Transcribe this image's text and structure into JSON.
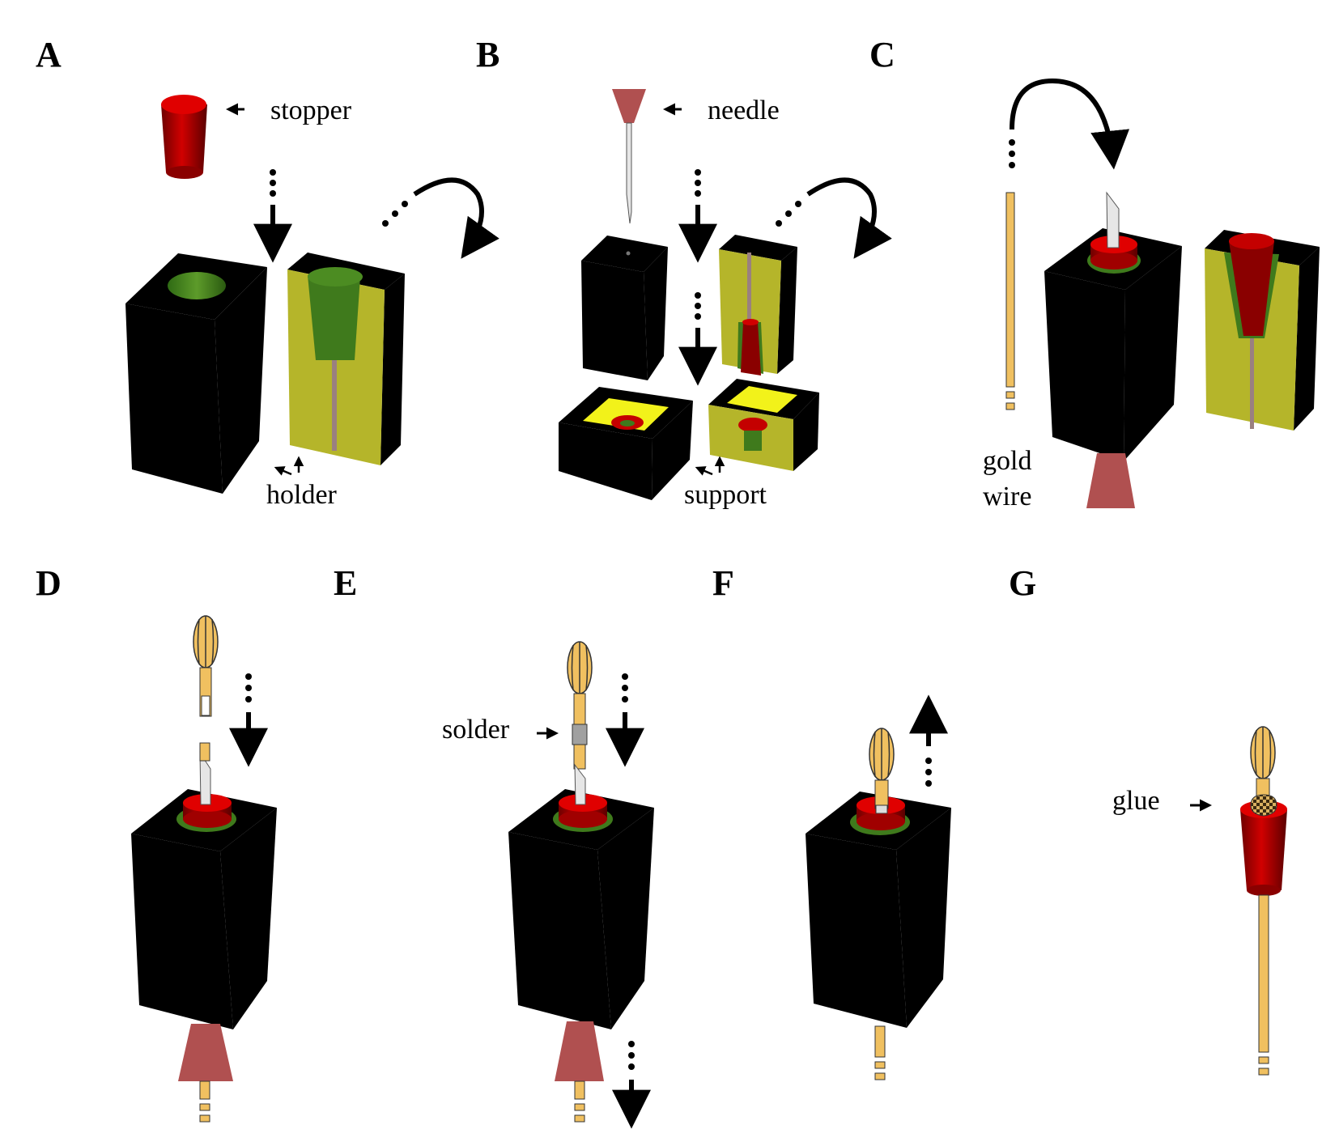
{
  "figure": {
    "panels": [
      {
        "letter": "A",
        "labels": {
          "stopper": "stopper",
          "holder": "holder"
        }
      },
      {
        "letter": "B",
        "labels": {
          "needle": "needle",
          "support": "support"
        }
      },
      {
        "letter": "C",
        "labels": {
          "gold": "gold",
          "wire": "wire"
        }
      },
      {
        "letter": "D",
        "labels": {}
      },
      {
        "letter": "E",
        "labels": {
          "solder": "solder"
        }
      },
      {
        "letter": "F",
        "labels": {}
      },
      {
        "letter": "G",
        "labels": {
          "glue": "glue"
        }
      }
    ]
  },
  "colors": {
    "block": "#000000",
    "stopper_red": "#c40000",
    "stopper_dark": "#7a0000",
    "holder_olive": "#b5b52a",
    "holder_hole_green": "#3f7a1c",
    "support_yellow": "#f2f21a",
    "needle_hub": "#b05050",
    "needle_shaft": "#e6e6e6",
    "gold": "#f0c060",
    "solder_gray": "#a0a0a0",
    "glue_pattern": "#8a6a2a"
  }
}
